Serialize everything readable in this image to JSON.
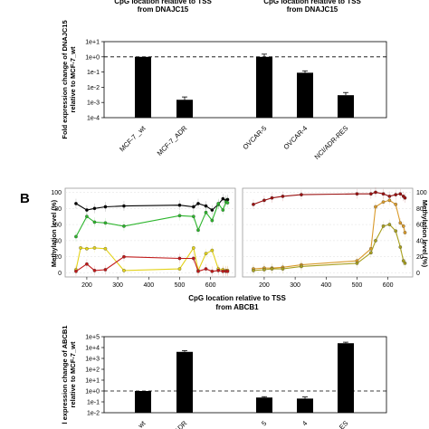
{
  "header_top_left": "CpG location relative to TSS\nfrom DNAJC15",
  "header_top_right": "CpG location relative to TSS\nfrom DNAJC15",
  "panel_b_letter": "B",
  "methylation_ylabel_left": "Methylation level (%)",
  "methylation_ylabel_right": "Methylation level (%)",
  "header_mid": "CpG location relative to TSS\nfrom ABCB1",
  "colors": {
    "black": "#000000",
    "green": "#2db52d",
    "yellow": "#e3d21a",
    "red": "#c01818",
    "darkred": "#9a1010",
    "orange": "#d99a2b",
    "olive": "#a8a020",
    "gold": "#e3b33a"
  },
  "chart_data": [
    {
      "type": "bar",
      "ylabel": "Fold expression change of DNAJC15\nrelative to MCF-7_wt",
      "yscale": "log",
      "ylim": [
        0.0001,
        10
      ],
      "yticks": [
        "1e-4",
        "1e-3",
        "1e-2",
        "1e-1",
        "1e+0",
        "1e+1"
      ],
      "reference_line": 1,
      "categories": [
        "MCF-7 _wt",
        "MCF-7_ADR",
        "OVCAR-5",
        "OVCAR-4",
        "NCI/ADR-RES"
      ],
      "values": [
        1,
        0.0015,
        1,
        0.09,
        0.003
      ],
      "errors": [
        0,
        0.0008,
        0.5,
        0.03,
        0.0015
      ]
    },
    {
      "type": "line",
      "ylabel": "Methylation level (%)",
      "xticks": [
        "200",
        "300",
        "400",
        "500",
        "600"
      ],
      "yticks": [
        "0",
        "20",
        "40",
        "60",
        "80",
        "100"
      ],
      "xlim": [
        130,
        680
      ],
      "ylim": [
        -5,
        105
      ],
      "series": [
        {
          "color": "#000000",
          "x": [
            165,
            200,
            225,
            260,
            320,
            500,
            545,
            560,
            585,
            605,
            625,
            640,
            650,
            655
          ],
          "y": [
            86,
            78,
            80,
            82,
            83,
            84,
            82,
            86,
            83,
            78,
            85,
            92,
            90,
            91
          ]
        },
        {
          "color": "#2db52d",
          "x": [
            165,
            200,
            225,
            260,
            320,
            500,
            545,
            560,
            585,
            605,
            625,
            640,
            650,
            655
          ],
          "y": [
            45,
            70,
            63,
            62,
            58,
            71,
            70,
            53,
            75,
            65,
            86,
            78,
            88,
            87
          ]
        },
        {
          "color": "#e3d21a",
          "x": [
            165,
            180,
            200,
            225,
            260,
            320,
            500,
            545,
            560,
            585,
            605,
            625,
            640,
            650,
            655
          ],
          "y": [
            4,
            31,
            30,
            31,
            30,
            3,
            5,
            31,
            3,
            24,
            28,
            5,
            4,
            3,
            3
          ]
        },
        {
          "color": "#c01818",
          "x": [
            165,
            200,
            225,
            260,
            320,
            500,
            545,
            560,
            585,
            605,
            625,
            640,
            650,
            655
          ],
          "y": [
            2,
            11,
            3,
            4,
            20,
            18,
            18,
            2,
            5,
            2,
            3,
            2,
            2,
            2
          ]
        }
      ]
    },
    {
      "type": "line",
      "ylabel": "Methylation level (%)",
      "xticks": [
        "200",
        "300",
        "400",
        "500",
        "600"
      ],
      "yticks": [
        "0",
        "20",
        "40",
        "60",
        "80",
        "100"
      ],
      "xlim": [
        130,
        680
      ],
      "ylim": [
        -5,
        105
      ],
      "series": [
        {
          "color": "#9a1010",
          "x": [
            165,
            200,
            225,
            260,
            320,
            500,
            545,
            560,
            585,
            605,
            625,
            640,
            650,
            655
          ],
          "y": [
            85,
            90,
            93,
            95,
            97,
            98,
            98,
            100,
            98,
            95,
            97,
            98,
            95,
            93
          ]
        },
        {
          "color": "#d99a2b",
          "x": [
            165,
            200,
            225,
            260,
            320,
            500,
            545,
            560,
            585,
            605,
            625,
            640,
            650,
            655
          ],
          "y": [
            5,
            6,
            6,
            7,
            10,
            15,
            30,
            82,
            88,
            90,
            85,
            62,
            58,
            50
          ]
        },
        {
          "color": "#a8a020",
          "x": [
            165,
            200,
            225,
            260,
            320,
            500,
            545,
            560,
            585,
            605,
            625,
            640,
            650,
            655
          ],
          "y": [
            3,
            4,
            5,
            5,
            8,
            12,
            25,
            40,
            58,
            60,
            52,
            32,
            15,
            12
          ]
        }
      ]
    },
    {
      "type": "bar",
      "ylabel": "l expression change of ABCB1\nrelative to MCF-7_wt",
      "yscale": "log",
      "ylim": [
        0.01,
        100000
      ],
      "yticks": [
        "1e-2",
        "1e-1",
        "1e+0",
        "1e+1",
        "1e+2",
        "1e+3",
        "1e+4",
        "1e+5"
      ],
      "reference_line": 1,
      "categories": [
        "wt",
        "ADR",
        "5",
        "4",
        "ES"
      ],
      "values": [
        1,
        4000,
        0.25,
        0.2,
        25000
      ],
      "errors": [
        0,
        1200,
        0.05,
        0.08,
        6000
      ]
    }
  ]
}
